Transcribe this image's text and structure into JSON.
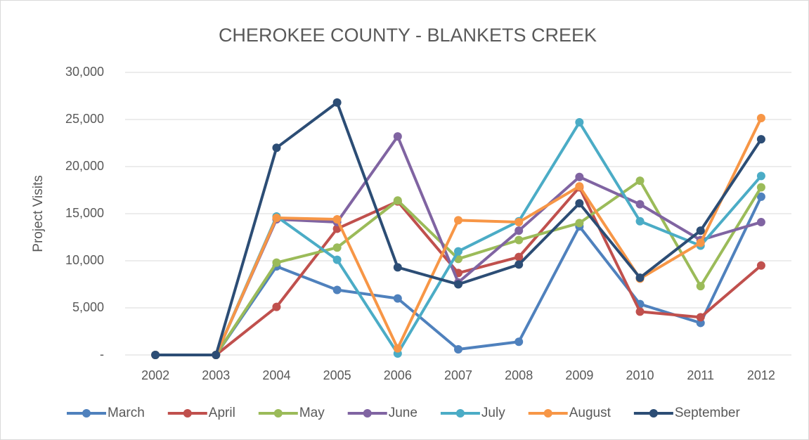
{
  "chart_data": {
    "type": "line",
    "title": "CHEROKEE COUNTY - BLANKETS CREEK",
    "y_label": "Project Visits",
    "categories": [
      "2002",
      "2003",
      "2004",
      "2005",
      "2006",
      "2007",
      "2008",
      "2009",
      "2010",
      "2011",
      "2012"
    ],
    "series": [
      {
        "name": "March",
        "color": "#4f81bd",
        "values": [
          0,
          0,
          9400,
          6900,
          6000,
          600,
          1400,
          13650,
          5400,
          3400,
          16800
        ]
      },
      {
        "name": "April",
        "color": "#c0504d",
        "values": [
          0,
          0,
          5100,
          13400,
          16300,
          8700,
          10400,
          17800,
          4600,
          4000,
          9500
        ]
      },
      {
        "name": "May",
        "color": "#9bbb59",
        "values": [
          0,
          0,
          9800,
          11400,
          16400,
          10200,
          12200,
          14000,
          18500,
          7300,
          17800
        ]
      },
      {
        "name": "June",
        "color": "#8064a2",
        "values": [
          0,
          0,
          14400,
          14100,
          23200,
          7700,
          13200,
          18900,
          16000,
          12200,
          14100
        ]
      },
      {
        "name": "July",
        "color": "#4bacc6",
        "values": [
          0,
          0,
          14700,
          10100,
          150,
          11000,
          14200,
          24700,
          14200,
          11600,
          19000
        ]
      },
      {
        "name": "August",
        "color": "#f79646",
        "values": [
          0,
          0,
          14550,
          14400,
          700,
          14300,
          14100,
          17900,
          8100,
          11900,
          25150
        ]
      },
      {
        "name": "September",
        "color": "#2c4d75",
        "values": [
          0,
          0,
          22000,
          26800,
          9300,
          7500,
          9600,
          16100,
          8200,
          13200,
          22900
        ]
      }
    ],
    "ylim": [
      0,
      30000
    ],
    "yticks": [
      {
        "value": 0,
        "label": "-"
      },
      {
        "value": 5000,
        "label": "5,000"
      },
      {
        "value": 10000,
        "label": "10,000"
      },
      {
        "value": 15000,
        "label": "15,000"
      },
      {
        "value": 20000,
        "label": "20,000"
      },
      {
        "value": 25000,
        "label": "25,000"
      },
      {
        "value": 30000,
        "label": "30,000"
      }
    ],
    "grid": true,
    "legend": "bottom"
  }
}
